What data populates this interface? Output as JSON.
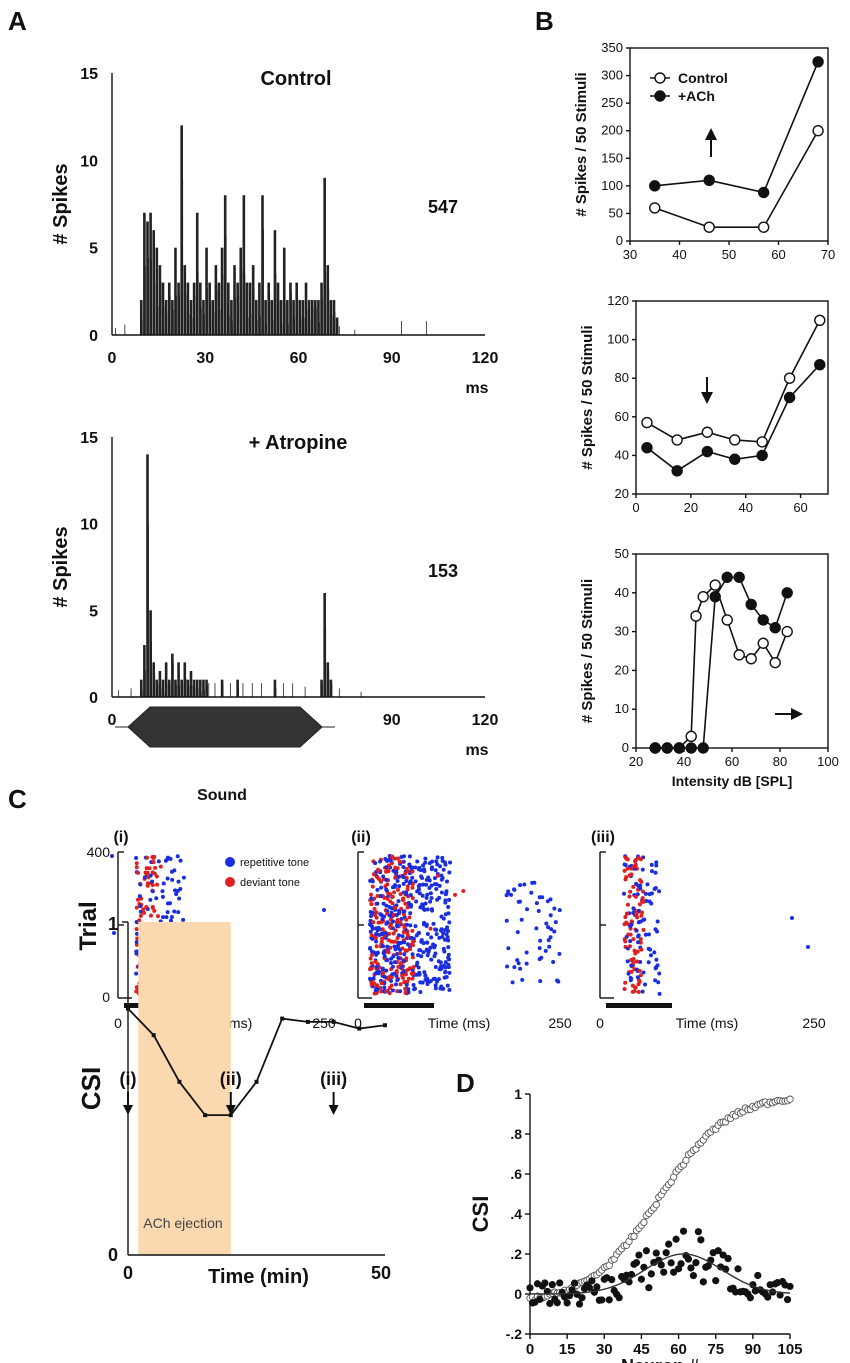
{
  "panel_labels": {
    "a": "A",
    "b": "B",
    "c": "C",
    "d": "D"
  },
  "chart_data": [
    {
      "id": "A-control",
      "type": "bar",
      "title": "Control",
      "annotation": "547",
      "ylabel": "#  Spikes",
      "xlabel": "ms",
      "xlim": [
        0,
        120
      ],
      "ylim": [
        0,
        15
      ],
      "xticks": [
        "0",
        "30",
        "60",
        "90",
        "120"
      ],
      "yticks": [
        "0",
        "5",
        "10",
        "15"
      ],
      "bins": [
        [
          9,
          2
        ],
        [
          10,
          7
        ],
        [
          11,
          6.5
        ],
        [
          12,
          7
        ],
        [
          13,
          6
        ],
        [
          14,
          5
        ],
        [
          15,
          4
        ],
        [
          16,
          3
        ],
        [
          17,
          2
        ],
        [
          18,
          3
        ],
        [
          19,
          2
        ],
        [
          20,
          5
        ],
        [
          21,
          3
        ],
        [
          22,
          12
        ],
        [
          23,
          4
        ],
        [
          24,
          3
        ],
        [
          25,
          2
        ],
        [
          26,
          3
        ],
        [
          27,
          7
        ],
        [
          28,
          3
        ],
        [
          29,
          2
        ],
        [
          30,
          5
        ],
        [
          31,
          3
        ],
        [
          32,
          2
        ],
        [
          33,
          4
        ],
        [
          34,
          3
        ],
        [
          35,
          5
        ],
        [
          36,
          8
        ],
        [
          37,
          3
        ],
        [
          38,
          2
        ],
        [
          39,
          4
        ],
        [
          40,
          3
        ],
        [
          41,
          5
        ],
        [
          42,
          8
        ],
        [
          43,
          3
        ],
        [
          44,
          3
        ],
        [
          45,
          4
        ],
        [
          46,
          2
        ],
        [
          47,
          3
        ],
        [
          48,
          8
        ],
        [
          49,
          2
        ],
        [
          50,
          3
        ],
        [
          51,
          2
        ],
        [
          52,
          6
        ],
        [
          53,
          3
        ],
        [
          54,
          2
        ],
        [
          55,
          5
        ],
        [
          56,
          2
        ],
        [
          57,
          3
        ],
        [
          58,
          2
        ],
        [
          59,
          3
        ],
        [
          60,
          2
        ],
        [
          61,
          2
        ],
        [
          62,
          3
        ],
        [
          63,
          2
        ],
        [
          64,
          2
        ],
        [
          65,
          2
        ],
        [
          66,
          2
        ],
        [
          67,
          3
        ],
        [
          68,
          9
        ],
        [
          69,
          4
        ],
        [
          70,
          2
        ],
        [
          71,
          2
        ],
        [
          72,
          1
        ],
        [
          73,
          0.5
        ],
        [
          1,
          0.4
        ],
        [
          4,
          0.6
        ],
        [
          78,
          0.3
        ],
        [
          93,
          0.8
        ],
        [
          101,
          0.8
        ]
      ]
    },
    {
      "id": "A-atropine",
      "type": "bar",
      "title": "+   Atropine",
      "annotation": "153",
      "ylabel": "#  Spikes",
      "xlabel": "ms",
      "xlim": [
        0,
        120
      ],
      "ylim": [
        0,
        15
      ],
      "xticks": [
        "0",
        "30",
        "60",
        "90",
        "120"
      ],
      "yticks": [
        "0",
        "5",
        "10",
        "15"
      ],
      "bins": [
        [
          9,
          1
        ],
        [
          10,
          3
        ],
        [
          11,
          14
        ],
        [
          12,
          5
        ],
        [
          13,
          2
        ],
        [
          14,
          1
        ],
        [
          15,
          1.5
        ],
        [
          16,
          1
        ],
        [
          17,
          2
        ],
        [
          18,
          1
        ],
        [
          19,
          2.5
        ],
        [
          20,
          1
        ],
        [
          21,
          2
        ],
        [
          22,
          1
        ],
        [
          23,
          2
        ],
        [
          24,
          1
        ],
        [
          25,
          1.5
        ],
        [
          26,
          1
        ],
        [
          27,
          1
        ],
        [
          28,
          1
        ],
        [
          29,
          1
        ],
        [
          30,
          1
        ],
        [
          31,
          0.8
        ],
        [
          33,
          0.8
        ],
        [
          35,
          1
        ],
        [
          38,
          0.8
        ],
        [
          40,
          1
        ],
        [
          42,
          0.8
        ],
        [
          45,
          0.8
        ],
        [
          48,
          0.8
        ],
        [
          52,
          1
        ],
        [
          55,
          0.8
        ],
        [
          58,
          0.8
        ],
        [
          62,
          0.6
        ],
        [
          67,
          1
        ],
        [
          68,
          6
        ],
        [
          69,
          2
        ],
        [
          70,
          1
        ],
        [
          73,
          0.5
        ],
        [
          2,
          0.4
        ],
        [
          6,
          0.5
        ],
        [
          80,
          0.3
        ]
      ],
      "stimulus_label": "Sound"
    },
    {
      "id": "B1",
      "type": "line",
      "ylabel": "# Spikes / 50 Stimuli",
      "xlim": [
        30,
        70
      ],
      "ylim": [
        0,
        350
      ],
      "xticks": [
        30,
        40,
        50,
        60,
        70
      ],
      "yticks": [
        0,
        50,
        100,
        150,
        200,
        250,
        300,
        350
      ],
      "legend": [
        "Control",
        "+ACh"
      ],
      "series": [
        {
          "name": "Control",
          "marker": "open",
          "x": [
            35,
            46,
            57,
            68
          ],
          "y": [
            60,
            25,
            25,
            200
          ]
        },
        {
          "name": "+ACh",
          "marker": "filled",
          "x": [
            35,
            46,
            57,
            68
          ],
          "y": [
            100,
            110,
            88,
            325
          ]
        }
      ],
      "arrow": "up"
    },
    {
      "id": "B2",
      "type": "line",
      "ylabel": "# Spikes / 50 Stimuli",
      "xlim": [
        0,
        70
      ],
      "ylim": [
        20,
        120
      ],
      "xticks": [
        0,
        20,
        40,
        60
      ],
      "yticks": [
        20,
        40,
        60,
        80,
        100,
        120
      ],
      "series": [
        {
          "name": "Control",
          "marker": "open",
          "x": [
            4,
            15,
            26,
            36,
            46,
            56,
            67
          ],
          "y": [
            57,
            48,
            52,
            48,
            47,
            80,
            110
          ]
        },
        {
          "name": "+ACh",
          "marker": "filled",
          "x": [
            4,
            15,
            26,
            36,
            46,
            56,
            67
          ],
          "y": [
            44,
            32,
            42,
            38,
            40,
            70,
            87
          ]
        }
      ],
      "arrow": "down"
    },
    {
      "id": "B3",
      "type": "line",
      "ylabel": "# Spikes / 50 Stimuli",
      "xlabel": "Intensity dB [SPL]",
      "xlim": [
        20,
        100
      ],
      "ylim": [
        0,
        50
      ],
      "xticks": [
        20,
        40,
        60,
        80,
        100
      ],
      "yticks": [
        0,
        10,
        20,
        30,
        40,
        50
      ],
      "series": [
        {
          "name": "Control",
          "marker": "open",
          "x": [
            28,
            33,
            38,
            43,
            45,
            48,
            53,
            58,
            63,
            68,
            73,
            78,
            83
          ],
          "y": [
            0,
            0,
            0,
            3,
            34,
            39,
            42,
            33,
            24,
            23,
            27,
            22,
            30
          ]
        },
        {
          "name": "+ACh",
          "marker": "filled",
          "x": [
            28,
            33,
            38,
            43,
            48,
            53,
            58,
            63,
            68,
            73,
            78,
            83
          ],
          "y": [
            0,
            0,
            0,
            0,
            0,
            39,
            44,
            44,
            37,
            33,
            31,
            40
          ]
        }
      ],
      "arrow": "right"
    },
    {
      "id": "C-raster",
      "type": "scatter",
      "ylabel": "Trial",
      "xlabel": "Time (ms)",
      "xticks": [
        "0",
        "250"
      ],
      "yticks": [
        "0",
        "400"
      ],
      "subpanels": [
        "(i)",
        "(ii)",
        "(iii)"
      ],
      "legend": [
        "repetitive tone",
        "deviant tone"
      ]
    },
    {
      "id": "C-csi",
      "type": "line",
      "ylabel": "CSI",
      "xlabel": "Time (min)",
      "xlim": [
        0,
        50
      ],
      "ylim": [
        0,
        1
      ],
      "xticks": [
        "0",
        "50"
      ],
      "yticks": [
        "0",
        "1"
      ],
      "series": [
        {
          "name": "CSI",
          "x": [
            0,
            5,
            10,
            15,
            20,
            25,
            30,
            35,
            40,
            45,
            50
          ],
          "y": [
            0.74,
            0.66,
            0.52,
            0.42,
            0.42,
            0.52,
            0.71,
            0.7,
            0.7,
            0.68,
            0.69
          ]
        }
      ],
      "shaded": {
        "label": "ACh ejection",
        "x0": 2,
        "x1": 20
      },
      "markers": [
        "(i)",
        "(ii)",
        "(iii)"
      ]
    },
    {
      "id": "D",
      "type": "scatter",
      "ylabel": "CSI",
      "xlabel": "Neuron #",
      "xlim": [
        0,
        105
      ],
      "ylim": [
        -0.2,
        1
      ],
      "xticks": [
        "0",
        "15",
        "30",
        "45",
        "60",
        "75",
        "90",
        "105"
      ],
      "yticks": [
        "-.2",
        "0",
        ".2",
        ".4",
        ".6",
        ".8",
        "1"
      ]
    }
  ]
}
